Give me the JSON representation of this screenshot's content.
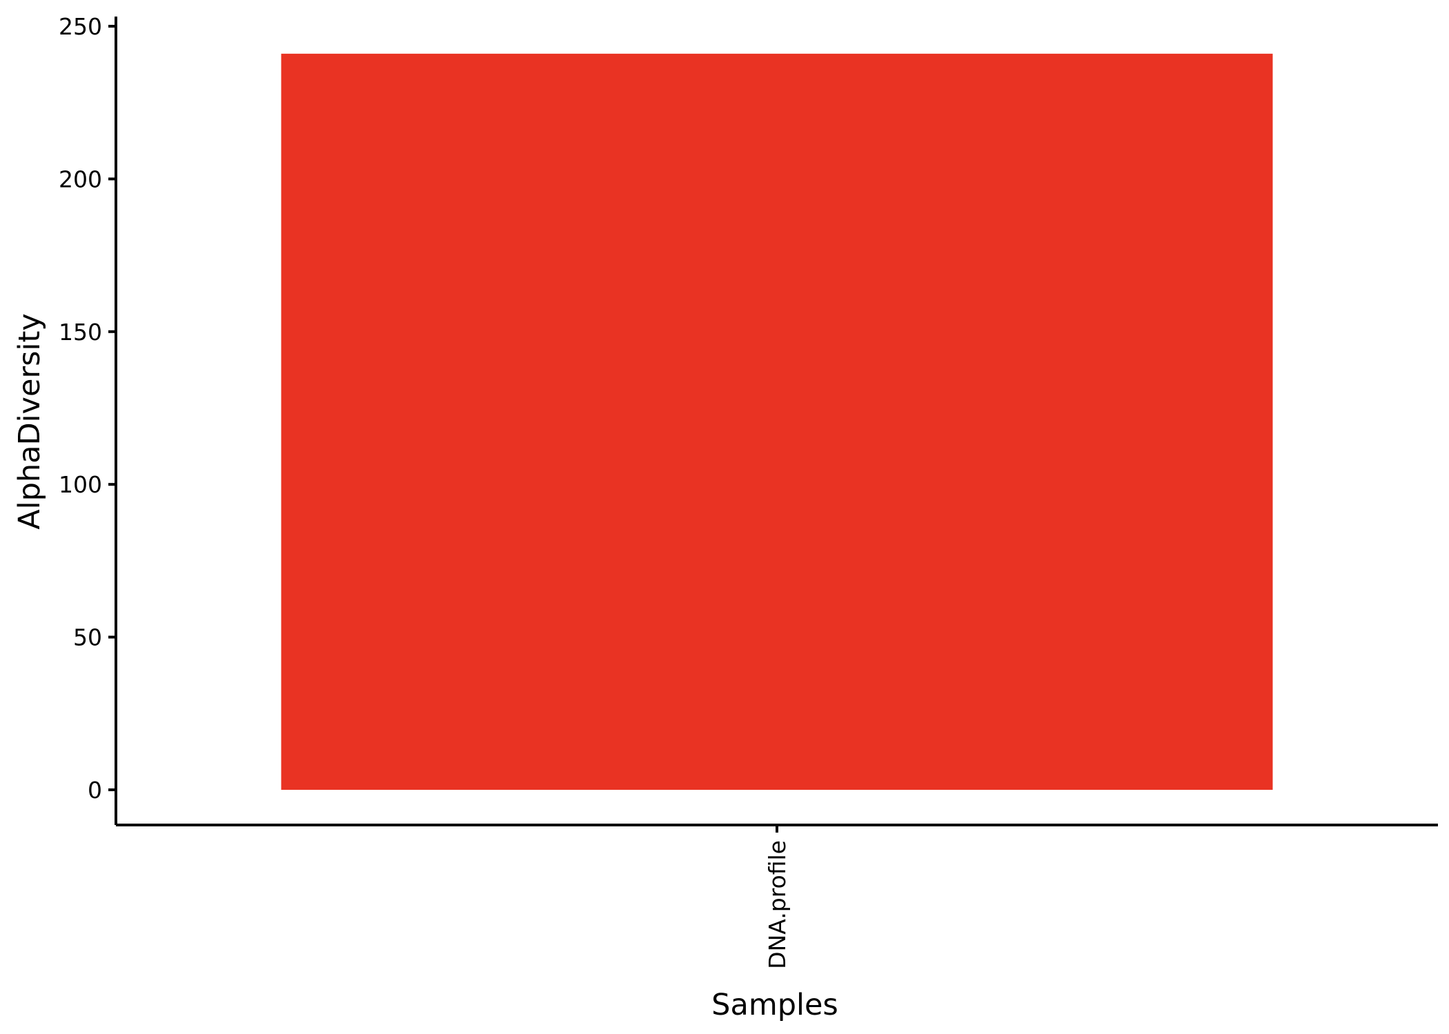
{
  "chart_data": {
    "type": "bar",
    "categories": [
      "DNA.profile"
    ],
    "values": [
      241
    ],
    "xlabel": "Samples",
    "ylabel": "AlphaDiversity",
    "ylim": [
      0,
      250
    ],
    "yticks": [
      0,
      50,
      100,
      150,
      200,
      250
    ],
    "grid": false,
    "legend": "none",
    "bar_color": "#E93323",
    "axis_color": "#000000"
  }
}
